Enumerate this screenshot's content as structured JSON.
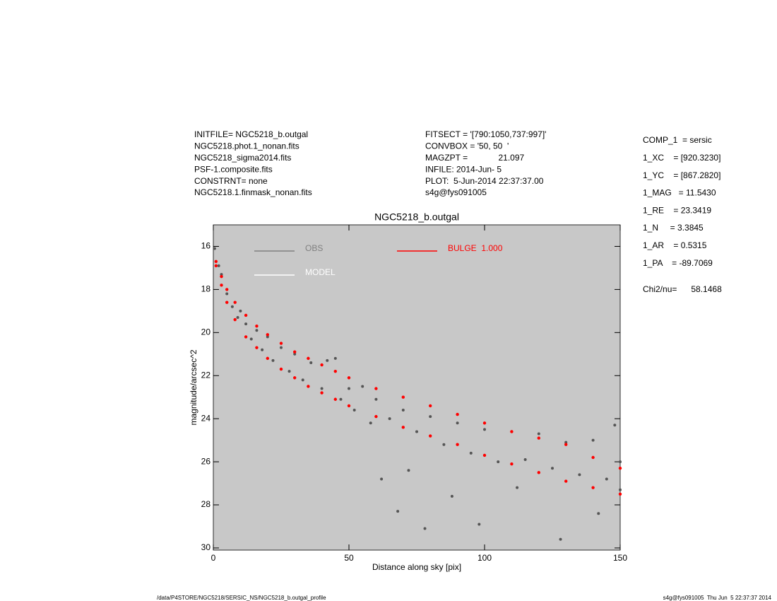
{
  "header": {
    "left": [
      "INITFILE= NGC5218_b.outgal",
      "NGC5218.phot.1_nonan.fits",
      "NGC5218_sigma2014.fits",
      "PSF-1.composite.fits",
      "CONSTRNT= none",
      "NGC5218.1.finmask_nonan.fits"
    ],
    "middle": [
      "FITSECT = '[790:1050,737:997]'",
      "CONVBOX = '50, 50  '",
      "MAGZPT =             21.097",
      "INFILE: 2014-Jun- 5",
      "PLOT:  5-Jun-2014 22:37:37.00",
      "s4g@fys091005"
    ],
    "right": [
      "COMP_1  = sersic",
      "1_XC    = [920.3230]",
      "1_YC    = [867.2820]",
      "1_MAG   = 11.5430",
      "1_RE    = 23.3419",
      "1_N     = 3.3845",
      "1_AR    = 0.5315",
      "1_PA    = -89.7069"
    ],
    "chi2": "Chi2/nu=      58.1468"
  },
  "chart_data": {
    "type": "scatter",
    "title": "NGC5218_b.outgal",
    "x_label": "Distance along sky [pix]",
    "y_label": "magnitude/arcsec^2",
    "xlim": [
      0,
      150
    ],
    "xticks": [
      0,
      50,
      100,
      150
    ],
    "ylim": [
      15,
      30.1
    ],
    "yticks": [
      16,
      18,
      20,
      22,
      24,
      26,
      28,
      30
    ],
    "y_inverted": true,
    "background": "#c8c8c8",
    "legend": [
      {
        "label": "OBS",
        "color": "#808080"
      },
      {
        "label": "MODEL",
        "color": "#ffffff"
      },
      {
        "label": "BULGE  1.000",
        "color": "#ff0000"
      }
    ],
    "series": [
      {
        "name": "OBS",
        "color": "#555555",
        "x": [
          0.5,
          2,
          3,
          5,
          7,
          9,
          10,
          12,
          14,
          16,
          18,
          20,
          22,
          25,
          28,
          30,
          33,
          36,
          40,
          42,
          45,
          47,
          50,
          52,
          55,
          58,
          60,
          62,
          65,
          68,
          70,
          72,
          75,
          78,
          80,
          85,
          88,
          90,
          95,
          98,
          100,
          105,
          110,
          112,
          115,
          120,
          125,
          128,
          130,
          135,
          140,
          142,
          145,
          148,
          150,
          150
        ],
        "y": [
          16.1,
          16.9,
          17.3,
          18.2,
          18.8,
          19.3,
          19.0,
          19.6,
          20.3,
          19.9,
          20.8,
          20.2,
          21.3,
          20.7,
          21.8,
          21.0,
          22.2,
          21.4,
          22.6,
          21.3,
          21.2,
          23.1,
          22.6,
          23.6,
          22.5,
          24.2,
          23.1,
          26.8,
          24.0,
          28.3,
          23.6,
          26.4,
          24.6,
          29.1,
          23.9,
          25.2,
          27.6,
          24.2,
          25.6,
          28.9,
          24.5,
          26.0,
          24.6,
          27.2,
          25.9,
          24.7,
          26.3,
          29.6,
          25.1,
          26.6,
          25.0,
          28.4,
          26.8,
          24.3,
          26.0,
          27.3
        ]
      },
      {
        "name": "BULGE",
        "color": "#ff0000",
        "x": [
          1,
          1,
          3,
          3,
          5,
          5,
          8,
          8,
          12,
          12,
          16,
          16,
          20,
          20,
          25,
          25,
          30,
          30,
          35,
          35,
          40,
          40,
          45,
          45,
          50,
          50,
          60,
          60,
          70,
          70,
          80,
          80,
          90,
          90,
          100,
          100,
          110,
          110,
          120,
          120,
          130,
          130,
          140,
          140,
          150,
          150
        ],
        "y": [
          16.7,
          16.9,
          17.4,
          17.8,
          18.0,
          18.6,
          18.6,
          19.4,
          19.2,
          20.2,
          19.7,
          20.7,
          20.1,
          21.2,
          20.5,
          21.7,
          20.9,
          22.1,
          21.2,
          22.5,
          21.5,
          22.8,
          21.8,
          23.1,
          22.1,
          23.4,
          22.6,
          23.9,
          23.0,
          24.4,
          23.4,
          24.8,
          23.8,
          25.2,
          24.2,
          25.7,
          24.6,
          26.1,
          24.9,
          26.5,
          25.2,
          26.9,
          25.8,
          27.2,
          26.3,
          27.5
        ]
      }
    ]
  },
  "footer": {
    "left": "/data/P4STORE/NGC5218/SERSIC_NS/NGC5218_b.outgal_profile",
    "right": "s4g@fys091005  Thu Jun  5 22:37:37 2014"
  }
}
